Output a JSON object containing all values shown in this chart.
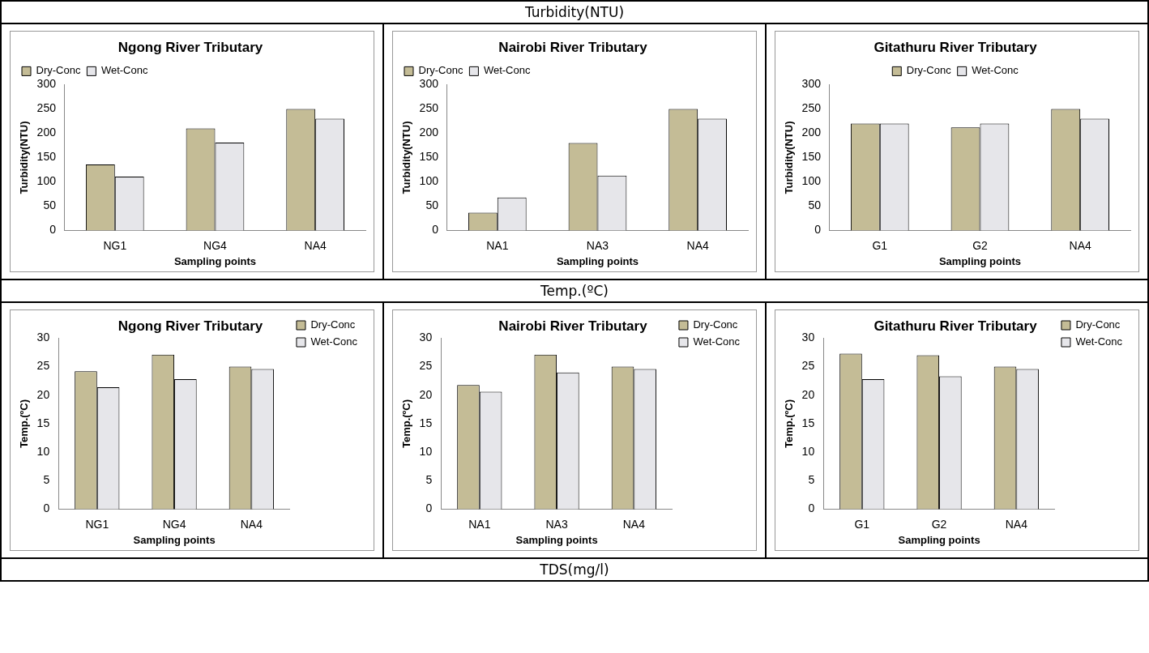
{
  "chart_data": [
    {
      "type": "other",
      "title": "Turbidity(NTU)"
    },
    {
      "type": "bar",
      "title": "Ngong River Tributary",
      "xlabel": "Sampling points",
      "ylabel": "Turbidity(NTU)",
      "categories": [
        "NG1",
        "NG4",
        "NA4"
      ],
      "ylim": [
        0,
        300
      ],
      "yticks": [
        0,
        50,
        100,
        150,
        200,
        250,
        300
      ],
      "legend": "top left",
      "series": [
        {
          "name": "Dry-Conc",
          "color": "#c4bc96",
          "values": [
            136,
            210,
            250
          ]
        },
        {
          "name": "Wet-Conc",
          "color": "#e6e6ea",
          "values": [
            111,
            181,
            230
          ]
        }
      ]
    },
    {
      "type": "bar",
      "title": "Nairobi River Tributary",
      "xlabel": "Sampling points",
      "ylabel": "Turbidity(NTU)",
      "categories": [
        "NA1",
        "NA3",
        "NA4"
      ],
      "ylim": [
        0,
        300
      ],
      "yticks": [
        0,
        50,
        100,
        150,
        200,
        250,
        300
      ],
      "legend": "top left",
      "series": [
        {
          "name": "Dry-Conc",
          "color": "#c4bc96",
          "values": [
            37,
            180,
            250
          ]
        },
        {
          "name": "Wet-Conc",
          "color": "#e6e6ea",
          "values": [
            68,
            113,
            230
          ]
        }
      ]
    },
    {
      "type": "bar",
      "title": "Gitathuru River Tributary",
      "xlabel": "Sampling points",
      "ylabel": "Turbidity(NTU)",
      "categories": [
        "G1",
        "G2",
        "NA4"
      ],
      "ylim": [
        0,
        300
      ],
      "yticks": [
        0,
        50,
        100,
        150,
        200,
        250,
        300
      ],
      "legend": "top",
      "series": [
        {
          "name": "Dry-Conc",
          "color": "#c4bc96",
          "values": [
            220,
            212,
            250
          ]
        },
        {
          "name": "Wet-Conc",
          "color": "#e6e6ea",
          "values": [
            220,
            220,
            230
          ]
        }
      ]
    },
    {
      "type": "other",
      "title": "Temp.(ºC)"
    },
    {
      "type": "bar",
      "title": "Ngong River Tributary",
      "xlabel": "Sampling points",
      "ylabel": "Temp.(ºC)",
      "categories": [
        "NG1",
        "NG4",
        "NA4"
      ],
      "ylim": [
        0,
        30
      ],
      "yticks": [
        0,
        5,
        10,
        15,
        20,
        25,
        30
      ],
      "legend": "top right",
      "series": [
        {
          "name": "Dry-Conc",
          "color": "#c4bc96",
          "values": [
            24.2,
            27.1,
            25
          ]
        },
        {
          "name": "Wet-Conc",
          "color": "#e6e6ea",
          "values": [
            21.4,
            22.8,
            24.6
          ]
        }
      ]
    },
    {
      "type": "bar",
      "title": "Nairobi River Tributary",
      "xlabel": "Sampling points",
      "ylabel": "Temp.(ºC)",
      "categories": [
        "NA1",
        "NA3",
        "NA4"
      ],
      "ylim": [
        0,
        30
      ],
      "yticks": [
        0,
        5,
        10,
        15,
        20,
        25,
        30
      ],
      "legend": "top right",
      "series": [
        {
          "name": "Dry-Conc",
          "color": "#c4bc96",
          "values": [
            21.8,
            27.1,
            25
          ]
        },
        {
          "name": "Wet-Conc",
          "color": "#e6e6ea",
          "values": [
            20.6,
            24,
            24.6
          ]
        }
      ]
    },
    {
      "type": "bar",
      "title": "Gitathuru River Tributary",
      "xlabel": "Sampling points",
      "ylabel": "Temp.(ºC)",
      "categories": [
        "G1",
        "G2",
        "NA4"
      ],
      "ylim": [
        0,
        30
      ],
      "yticks": [
        0,
        5,
        10,
        15,
        20,
        25,
        30
      ],
      "legend": "top right",
      "series": [
        {
          "name": "Dry-Conc",
          "color": "#c4bc96",
          "values": [
            27.3,
            27,
            25
          ]
        },
        {
          "name": "Wet-Conc",
          "color": "#e6e6ea",
          "values": [
            22.8,
            23.3,
            24.6
          ]
        }
      ]
    },
    {
      "type": "other",
      "title": "TDS(mg/l)"
    }
  ]
}
